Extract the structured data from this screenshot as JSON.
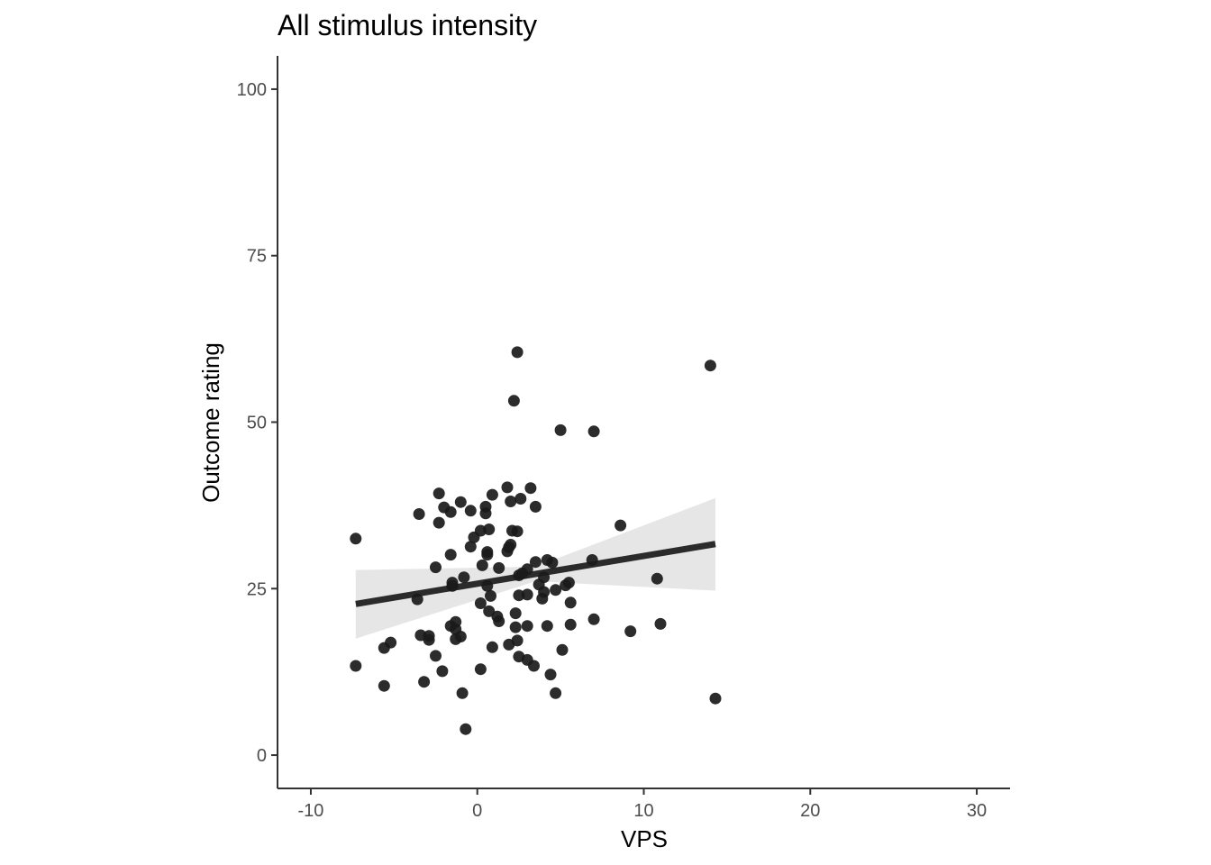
{
  "chart_data": {
    "type": "scatter",
    "title": "All stimulus intensity",
    "xlabel": "VPS",
    "ylabel": "Outcome rating",
    "xlim": [
      -12,
      32
    ],
    "ylim": [
      -5,
      105
    ],
    "x_ticks": [
      -10,
      0,
      10,
      20,
      30
    ],
    "x_tick_labels": [
      "-10",
      "0",
      "10",
      "20",
      "30"
    ],
    "y_ticks": [
      0,
      25,
      50,
      75,
      100
    ],
    "y_tick_labels": [
      "0",
      "25",
      "50",
      "75",
      "100"
    ],
    "grid": false,
    "legend": "none",
    "point_color": "#1a1a1a",
    "line_color": "#2b2b2b",
    "ribbon_color": "#e6e6e6",
    "points": [
      [
        -7.3,
        32.5
      ],
      [
        -7.3,
        13.4
      ],
      [
        -5.6,
        16.1
      ],
      [
        -5.6,
        10.4
      ],
      [
        -5.2,
        16.9
      ],
      [
        -3.5,
        36.2
      ],
      [
        -3.4,
        18.0
      ],
      [
        -3.6,
        23.4
      ],
      [
        -3.2,
        11.0
      ],
      [
        -2.9,
        17.3
      ],
      [
        -2.9,
        17.9
      ],
      [
        -2.5,
        28.2
      ],
      [
        -2.5,
        14.9
      ],
      [
        -2.3,
        39.3
      ],
      [
        -2.3,
        34.9
      ],
      [
        -2.1,
        12.6
      ],
      [
        -2.0,
        37.2
      ],
      [
        -1.6,
        36.5
      ],
      [
        -1.6,
        30.1
      ],
      [
        -1.6,
        19.4
      ],
      [
        -1.5,
        25.4
      ],
      [
        -1.5,
        25.9
      ],
      [
        -1.3,
        20.0
      ],
      [
        -1.3,
        18.9
      ],
      [
        -1.3,
        17.4
      ],
      [
        -1.0,
        38.0
      ],
      [
        -1.0,
        17.8
      ],
      [
        -0.9,
        9.3
      ],
      [
        -0.8,
        26.7
      ],
      [
        -0.7,
        3.9
      ],
      [
        -0.4,
        36.7
      ],
      [
        -0.4,
        31.3
      ],
      [
        -0.2,
        32.7
      ],
      [
        0.2,
        33.7
      ],
      [
        0.3,
        28.5
      ],
      [
        0.2,
        22.8
      ],
      [
        0.2,
        12.9
      ],
      [
        0.5,
        37.3
      ],
      [
        0.5,
        36.3
      ],
      [
        0.7,
        33.9
      ],
      [
        0.6,
        30.5
      ],
      [
        0.6,
        30.1
      ],
      [
        0.6,
        25.4
      ],
      [
        0.7,
        21.6
      ],
      [
        0.8,
        23.9
      ],
      [
        0.9,
        39.1
      ],
      [
        0.9,
        16.2
      ],
      [
        1.2,
        20.8
      ],
      [
        1.3,
        28.1
      ],
      [
        1.3,
        20.1
      ],
      [
        1.8,
        40.2
      ],
      [
        1.8,
        30.6
      ],
      [
        1.9,
        31.2
      ],
      [
        1.9,
        16.6
      ],
      [
        2.0,
        31.6
      ],
      [
        2.0,
        38.1
      ],
      [
        2.1,
        33.7
      ],
      [
        2.2,
        53.2
      ],
      [
        2.3,
        21.3
      ],
      [
        2.3,
        19.2
      ],
      [
        2.4,
        60.5
      ],
      [
        2.4,
        33.6
      ],
      [
        2.4,
        17.2
      ],
      [
        2.5,
        27.0
      ],
      [
        2.5,
        24.0
      ],
      [
        2.5,
        14.8
      ],
      [
        2.6,
        38.5
      ],
      [
        2.7,
        27.3
      ],
      [
        3.0,
        27.9
      ],
      [
        3.0,
        24.1
      ],
      [
        3.0,
        19.4
      ],
      [
        3.0,
        14.3
      ],
      [
        3.2,
        40.1
      ],
      [
        3.4,
        13.4
      ],
      [
        3.5,
        37.3
      ],
      [
        3.5,
        29.0
      ],
      [
        3.7,
        25.6
      ],
      [
        3.9,
        23.5
      ],
      [
        4.0,
        26.7
      ],
      [
        4.0,
        24.5
      ],
      [
        4.2,
        29.3
      ],
      [
        4.2,
        19.4
      ],
      [
        4.4,
        12.1
      ],
      [
        4.5,
        28.9
      ],
      [
        4.7,
        24.8
      ],
      [
        4.7,
        9.3
      ],
      [
        5.0,
        48.8
      ],
      [
        5.1,
        15.8
      ],
      [
        5.3,
        25.5
      ],
      [
        5.5,
        25.9
      ],
      [
        5.6,
        22.9
      ],
      [
        5.6,
        19.6
      ],
      [
        6.9,
        29.3
      ],
      [
        7.0,
        48.6
      ],
      [
        7.0,
        20.4
      ],
      [
        8.6,
        34.5
      ],
      [
        9.2,
        18.6
      ],
      [
        10.8,
        26.5
      ],
      [
        11.0,
        19.7
      ],
      [
        14.0,
        58.5
      ],
      [
        14.3,
        8.5
      ]
    ],
    "regression": {
      "x": [
        -7.3,
        14.3
      ],
      "y": [
        22.7,
        31.7
      ]
    },
    "confidence_band": {
      "x": [
        -7.3,
        14.3
      ],
      "upper": [
        27.8,
        38.6
      ],
      "lower": [
        17.5,
        24.7
      ],
      "pinch_x": 3.5,
      "pinch_upper": 28.3,
      "pinch_lower": 26.1
    }
  }
}
